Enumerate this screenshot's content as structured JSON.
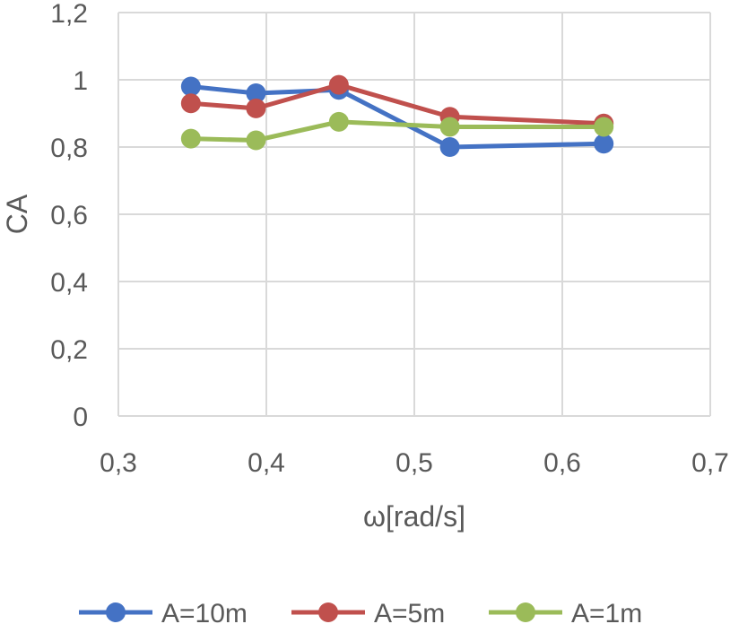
{
  "chart_data": {
    "type": "line",
    "title": "",
    "xlabel": "ω[rad/s]",
    "ylabel": "CA",
    "xlim": [
      0.3,
      0.7
    ],
    "ylim": [
      0,
      1.2
    ],
    "x_ticks": [
      0.3,
      0.4,
      0.5,
      0.6,
      0.7
    ],
    "x_tick_labels": [
      "0,3",
      "0,4",
      "0,5",
      "0,6",
      "0,7"
    ],
    "y_ticks": [
      0,
      0.2,
      0.4,
      0.6,
      0.8,
      1.0,
      1.2
    ],
    "y_tick_labels": [
      "0",
      "0,2",
      "0,4",
      "0,6",
      "0,8",
      "1",
      "1,2"
    ],
    "grid": true,
    "legend_position": "bottom",
    "series": [
      {
        "name": "A=10m",
        "color": "#4472c4",
        "x": [
          0.349,
          0.393,
          0.449,
          0.524,
          0.628
        ],
        "y": [
          0.98,
          0.96,
          0.97,
          0.8,
          0.81
        ]
      },
      {
        "name": "A=5m",
        "color": "#c0504d",
        "x": [
          0.349,
          0.393,
          0.449,
          0.524,
          0.628
        ],
        "y": [
          0.93,
          0.915,
          0.985,
          0.89,
          0.87
        ]
      },
      {
        "name": "A=1m",
        "color": "#9bbb59",
        "x": [
          0.349,
          0.393,
          0.449,
          0.524,
          0.628
        ],
        "y": [
          0.825,
          0.82,
          0.875,
          0.86,
          0.86
        ]
      }
    ]
  }
}
